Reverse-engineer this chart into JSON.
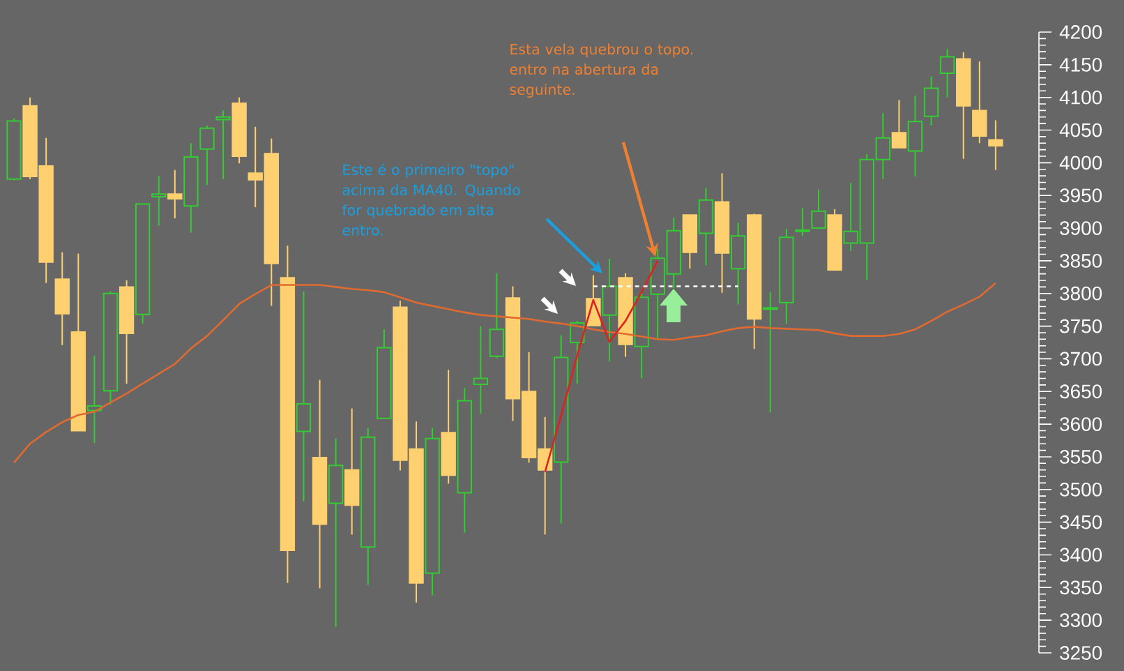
{
  "chart_data": {
    "type": "candlestick",
    "categories": [
      null,
      null,
      null,
      null,
      null,
      null,
      null,
      null,
      null,
      null,
      null,
      null,
      null,
      null,
      null,
      null,
      null,
      null,
      null,
      null,
      null,
      null,
      null,
      null,
      null,
      null,
      null,
      null,
      null,
      null,
      null,
      null,
      null,
      null,
      null,
      null,
      null,
      null,
      null,
      null,
      null,
      null,
      null,
      null,
      null,
      null,
      null,
      null,
      null,
      null,
      null,
      null,
      null,
      null,
      null,
      null,
      null,
      null,
      null,
      null,
      null,
      null
    ],
    "series": [
      {
        "ohlc": [
          [
            3975,
            4068,
            3973,
            4064
          ],
          [
            4087,
            4100,
            3975,
            3979
          ],
          [
            3995,
            4038,
            3816,
            3848
          ],
          [
            3822,
            3863,
            3721,
            3769
          ],
          [
            3741,
            3861,
            3590,
            3590
          ],
          [
            3621,
            3705,
            3571,
            3628
          ],
          [
            3651,
            3803,
            3630,
            3800
          ],
          [
            3810,
            3820,
            3662,
            3739
          ],
          [
            3768,
            3937,
            3754,
            3937
          ],
          [
            3948,
            3980,
            3904,
            3952
          ],
          [
            3952,
            3989,
            3915,
            3945
          ],
          [
            3934,
            4030,
            3893,
            4009
          ],
          [
            4021,
            4057,
            3966,
            4053
          ],
          [
            4066,
            4080,
            3975,
            4070
          ],
          [
            4091,
            4100,
            3999,
            4010
          ],
          [
            3984,
            4055,
            3932,
            3974
          ],
          [
            4014,
            4037,
            3781,
            3846
          ],
          [
            3824,
            3873,
            3357,
            3407
          ],
          [
            3589,
            3803,
            3482,
            3631
          ],
          [
            3549,
            3668,
            3349,
            3447
          ],
          [
            3479,
            3578,
            3290,
            3537
          ],
          [
            3530,
            3624,
            3431,
            3476
          ],
          [
            3412,
            3594,
            3354,
            3580
          ],
          [
            3609,
            3745,
            3609,
            3717
          ],
          [
            3779,
            3789,
            3529,
            3545
          ],
          [
            3562,
            3604,
            3327,
            3357
          ],
          [
            3372,
            3594,
            3338,
            3578
          ],
          [
            3587,
            3683,
            3509,
            3522
          ],
          [
            3495,
            3655,
            3434,
            3636
          ],
          [
            3661,
            3750,
            3616,
            3670
          ],
          [
            3704,
            3831,
            3701,
            3745
          ],
          [
            3793,
            3811,
            3605,
            3639
          ],
          [
            3650,
            3710,
            3541,
            3549
          ],
          [
            3562,
            3611,
            3431,
            3530
          ],
          [
            3542,
            3736,
            3448,
            3702
          ],
          [
            3725,
            3758,
            3662,
            3755
          ],
          [
            3792,
            3828,
            3751,
            3751
          ],
          [
            3767,
            3853,
            3696,
            3811
          ],
          [
            3824,
            3831,
            3703,
            3722
          ],
          [
            3719,
            3804,
            3670,
            3794
          ],
          [
            3799,
            3868,
            3731,
            3854
          ],
          [
            3830,
            3916,
            3808,
            3896
          ],
          [
            3920,
            3920,
            3838,
            3863
          ],
          [
            3892,
            3962,
            3843,
            3943
          ],
          [
            3940,
            3984,
            3801,
            3862
          ],
          [
            3838,
            3908,
            3783,
            3888
          ],
          [
            3920,
            3922,
            3715,
            3761
          ],
          [
            3776,
            3802,
            3618,
            3778
          ],
          [
            3786,
            3899,
            3754,
            3886
          ],
          [
            3895,
            3931,
            3888,
            3897
          ],
          [
            3900,
            3959,
            3900,
            3926
          ],
          [
            3920,
            3929,
            3836,
            3836
          ],
          [
            3877,
            3969,
            3865,
            3895
          ],
          [
            3877,
            4013,
            3820,
            4005
          ],
          [
            4005,
            4076,
            3975,
            4038
          ],
          [
            4046,
            4096,
            4023,
            4023
          ],
          [
            4018,
            4103,
            3979,
            4063
          ],
          [
            4071,
            4132,
            4057,
            4114
          ],
          [
            4137,
            4174,
            4100,
            4162
          ],
          [
            4159,
            4169,
            4006,
            4087
          ],
          [
            4080,
            4155,
            4030,
            4041
          ],
          [
            4035,
            4065,
            3989,
            4026
          ]
        ],
        "colors": [
          "#33cc33",
          "#ffd070",
          "#ffd070",
          "#ffd070",
          "#ffd070",
          "#33cc33",
          "#33cc33",
          "#ffd070",
          "#33cc33",
          "#33cc33",
          "#ffd070",
          "#33cc33",
          "#33cc33",
          "#33cc33",
          "#ffd070",
          "#ffd070",
          "#ffd070",
          "#ffd070",
          "#33cc33",
          "#ffd070",
          "#33cc33",
          "#ffd070",
          "#33cc33",
          "#33cc33",
          "#ffd070",
          "#ffd070",
          "#33cc33",
          "#ffd070",
          "#33cc33",
          "#33cc33",
          "#33cc33",
          "#ffd070",
          "#ffd070",
          "#ffd070",
          "#33cc33",
          "#33cc33",
          "#ffd070",
          "#33cc33",
          "#ffd070",
          "#33cc33",
          "#33cc33",
          "#33cc33",
          "#ffd070",
          "#33cc33",
          "#ffd070",
          "#33cc33",
          "#ffd070",
          "#33cc33",
          "#33cc33",
          "#33cc33",
          "#33cc33",
          "#ffd070",
          "#33cc33",
          "#33cc33",
          "#33cc33",
          "#ffd070",
          "#33cc33",
          "#33cc33",
          "#33cc33",
          "#ffd070",
          "#ffd070",
          "#ffd070"
        ]
      },
      {
        "type": "line",
        "color": "#e06a30",
        "values": [
          3541,
          3570,
          3588,
          3603,
          3614,
          3619,
          3633,
          3647,
          3662,
          3677,
          3692,
          3716,
          3735,
          3759,
          3784,
          3799,
          3813,
          3813,
          3813,
          3813,
          3810,
          3807,
          3805,
          3802,
          3794,
          3786,
          3781,
          3776,
          3771,
          3767,
          3765,
          3763,
          3761,
          3757,
          3754,
          3750,
          3745,
          3741,
          3738,
          3734,
          3730,
          3729,
          3733,
          3736,
          3742,
          3747,
          3749,
          3747,
          3746,
          3745,
          3744,
          3739,
          3735,
          3735,
          3735,
          3738,
          3745,
          3758,
          3772,
          3783,
          3795,
          3816
        ]
      },
      {
        "type": "line",
        "color": "#e02020",
        "values": [
          null,
          null,
          null,
          null,
          null,
          null,
          null,
          null,
          null,
          null,
          null,
          null,
          null,
          null,
          null,
          null,
          null,
          null,
          null,
          null,
          null,
          null,
          null,
          null,
          null,
          null,
          null,
          null,
          null,
          null,
          null,
          null,
          null,
          3527,
          3613,
          3705,
          3790,
          3726,
          3758,
          3802,
          3850,
          null,
          null,
          null,
          null,
          null,
          null,
          null,
          null,
          null,
          null,
          null,
          null,
          null,
          null,
          null,
          null,
          null,
          null,
          null,
          null,
          null
        ]
      },
      {
        "type": "line",
        "color": "#ffffff",
        "line_style": "dashed",
        "values": [
          null,
          null,
          null,
          null,
          null,
          null,
          null,
          null,
          null,
          null,
          null,
          null,
          null,
          null,
          null,
          null,
          null,
          null,
          null,
          null,
          null,
          null,
          null,
          null,
          null,
          null,
          null,
          null,
          null,
          null,
          null,
          null,
          null,
          null,
          null,
          null,
          3811,
          3811,
          3811,
          3811,
          3811,
          3811,
          3811,
          3811,
          3811,
          3811,
          null,
          null,
          null,
          null,
          null,
          null,
          null,
          null,
          null,
          null,
          null,
          null,
          null,
          null,
          null,
          null
        ]
      }
    ],
    "ylim": [
      3250,
      4200
    ],
    "yticks": [
      3250,
      3300,
      3350,
      3400,
      3450,
      3500,
      3550,
      3600,
      3650,
      3700,
      3750,
      3800,
      3850,
      3900,
      3950,
      4000,
      4050,
      4100,
      4150,
      4200
    ],
    "tick_labels": "y",
    "annotations": [
      "Este é o primeiro \"topo\" acima da MA40. Quando for quebrado em alta entro.",
      "Esta vela quebrou o topo. entro na abertura da seguinte."
    ]
  }
}
